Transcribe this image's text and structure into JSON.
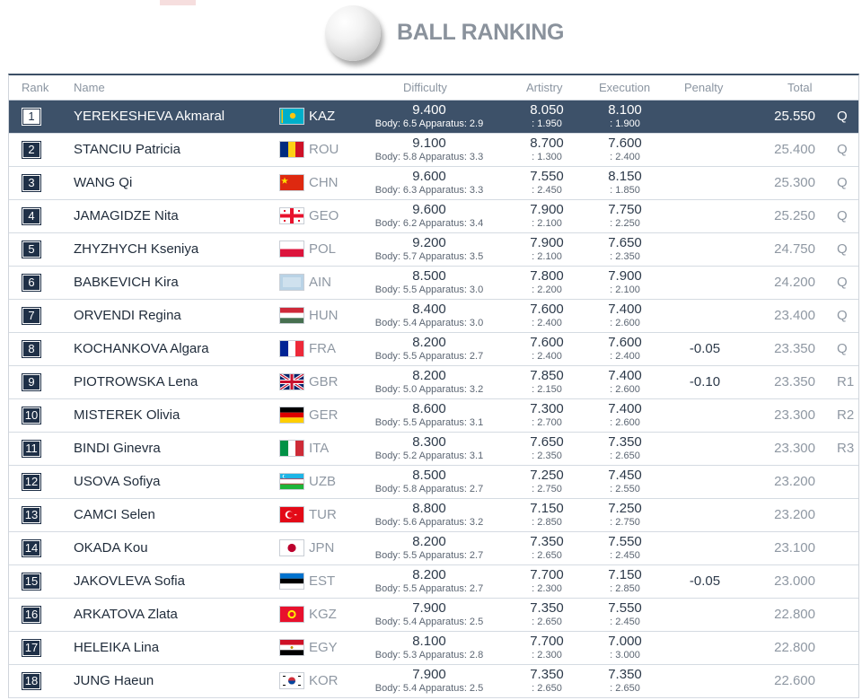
{
  "title": "BALL RANKING",
  "headers": {
    "rank": "Rank",
    "name": "Name",
    "difficulty": "Difficulty",
    "artistry": "Artistry",
    "execution": "Execution",
    "penalty": "Penalty",
    "total": "Total"
  },
  "colors": {
    "highlight_row": "#3d5169",
    "rank_box": "#1f3047",
    "title": "#8a929c"
  },
  "rows": [
    {
      "rank": "1",
      "name": "YEREKESHEVA Akmaral",
      "noc": "KAZ",
      "flag": "kaz-flag-icon",
      "difficulty": "9.400",
      "diff_detail": "Body: 6.5 Apparatus: 2.9",
      "artistry": "8.050",
      "art_detail": ": 1.950",
      "execution": "8.100",
      "exe_detail": ": 1.900",
      "penalty": "",
      "total": "25.550",
      "qual": "Q",
      "highlight": true
    },
    {
      "rank": "2",
      "name": "STANCIU Patricia",
      "noc": "ROU",
      "flag": "rou-flag-icon",
      "difficulty": "9.100",
      "diff_detail": "Body: 5.8 Apparatus: 3.3",
      "artistry": "8.700",
      "art_detail": ": 1.300",
      "execution": "7.600",
      "exe_detail": ": 2.400",
      "penalty": "",
      "total": "25.400",
      "qual": "Q"
    },
    {
      "rank": "3",
      "name": "WANG Qi",
      "noc": "CHN",
      "flag": "chn-flag-icon",
      "difficulty": "9.600",
      "diff_detail": "Body: 6.3 Apparatus: 3.3",
      "artistry": "7.550",
      "art_detail": ": 2.450",
      "execution": "8.150",
      "exe_detail": ": 1.850",
      "penalty": "",
      "total": "25.300",
      "qual": "Q"
    },
    {
      "rank": "4",
      "name": "JAMAGIDZE Nita",
      "noc": "GEO",
      "flag": "geo-flag-icon",
      "difficulty": "9.600",
      "diff_detail": "Body: 6.2 Apparatus: 3.4",
      "artistry": "7.900",
      "art_detail": ": 2.100",
      "execution": "7.750",
      "exe_detail": ": 2.250",
      "penalty": "",
      "total": "25.250",
      "qual": "Q"
    },
    {
      "rank": "5",
      "name": "ZHYZHYCH Kseniya",
      "noc": "POL",
      "flag": "pol-flag-icon",
      "difficulty": "9.200",
      "diff_detail": "Body: 5.7 Apparatus: 3.5",
      "artistry": "7.900",
      "art_detail": ": 2.100",
      "execution": "7.650",
      "exe_detail": ": 2.350",
      "penalty": "",
      "total": "24.750",
      "qual": "Q"
    },
    {
      "rank": "6",
      "name": "BABKEVICH Kira",
      "noc": "AIN",
      "flag": "ain-flag-icon",
      "difficulty": "8.500",
      "diff_detail": "Body: 5.5 Apparatus: 3.0",
      "artistry": "7.800",
      "art_detail": ": 2.200",
      "execution": "7.900",
      "exe_detail": ": 2.100",
      "penalty": "",
      "total": "24.200",
      "qual": "Q"
    },
    {
      "rank": "7",
      "name": "ORVENDI Regina",
      "noc": "HUN",
      "flag": "hun-flag-icon",
      "difficulty": "8.400",
      "diff_detail": "Body: 5.4 Apparatus: 3.0",
      "artistry": "7.600",
      "art_detail": ": 2.400",
      "execution": "7.400",
      "exe_detail": ": 2.600",
      "penalty": "",
      "total": "23.400",
      "qual": "Q"
    },
    {
      "rank": "8",
      "name": "KOCHANKOVA Algara",
      "noc": "FRA",
      "flag": "fra-flag-icon",
      "difficulty": "8.200",
      "diff_detail": "Body: 5.5 Apparatus: 2.7",
      "artistry": "7.600",
      "art_detail": ": 2.400",
      "execution": "7.600",
      "exe_detail": ": 2.400",
      "penalty": "-0.05",
      "total": "23.350",
      "qual": "Q"
    },
    {
      "rank": "9",
      "name": "PIOTROWSKA Lena",
      "noc": "GBR",
      "flag": "gbr-flag-icon",
      "difficulty": "8.200",
      "diff_detail": "Body: 5.0 Apparatus: 3.2",
      "artistry": "7.850",
      "art_detail": ": 2.150",
      "execution": "7.400",
      "exe_detail": ": 2.600",
      "penalty": "-0.10",
      "total": "23.350",
      "qual": "R1"
    },
    {
      "rank": "10",
      "name": "MISTEREK Olivia",
      "noc": "GER",
      "flag": "ger-flag-icon",
      "difficulty": "8.600",
      "diff_detail": "Body: 5.5 Apparatus: 3.1",
      "artistry": "7.300",
      "art_detail": ": 2.700",
      "execution": "7.400",
      "exe_detail": ": 2.600",
      "penalty": "",
      "total": "23.300",
      "qual": "R2"
    },
    {
      "rank": "11",
      "name": "BINDI Ginevra",
      "noc": "ITA",
      "flag": "ita-flag-icon",
      "difficulty": "8.300",
      "diff_detail": "Body: 5.2 Apparatus: 3.1",
      "artistry": "7.650",
      "art_detail": ": 2.350",
      "execution": "7.350",
      "exe_detail": ": 2.650",
      "penalty": "",
      "total": "23.300",
      "qual": "R3"
    },
    {
      "rank": "12",
      "name": "USOVA Sofiya",
      "noc": "UZB",
      "flag": "uzb-flag-icon",
      "difficulty": "8.500",
      "diff_detail": "Body: 5.8 Apparatus: 2.7",
      "artistry": "7.250",
      "art_detail": ": 2.750",
      "execution": "7.450",
      "exe_detail": ": 2.550",
      "penalty": "",
      "total": "23.200",
      "qual": ""
    },
    {
      "rank": "13",
      "name": "CAMCI Selen",
      "noc": "TUR",
      "flag": "tur-flag-icon",
      "difficulty": "8.800",
      "diff_detail": "Body: 5.6 Apparatus: 3.2",
      "artistry": "7.150",
      "art_detail": ": 2.850",
      "execution": "7.250",
      "exe_detail": ": 2.750",
      "penalty": "",
      "total": "23.200",
      "qual": ""
    },
    {
      "rank": "14",
      "name": "OKADA Kou",
      "noc": "JPN",
      "flag": "jpn-flag-icon",
      "difficulty": "8.200",
      "diff_detail": "Body: 5.5 Apparatus: 2.7",
      "artistry": "7.350",
      "art_detail": ": 2.650",
      "execution": "7.550",
      "exe_detail": ": 2.450",
      "penalty": "",
      "total": "23.100",
      "qual": ""
    },
    {
      "rank": "15",
      "name": "JAKOVLEVA Sofia",
      "noc": "EST",
      "flag": "est-flag-icon",
      "difficulty": "8.200",
      "diff_detail": "Body: 5.5 Apparatus: 2.7",
      "artistry": "7.700",
      "art_detail": ": 2.300",
      "execution": "7.150",
      "exe_detail": ": 2.850",
      "penalty": "-0.05",
      "total": "23.000",
      "qual": ""
    },
    {
      "rank": "16",
      "name": "ARKATOVA Zlata",
      "noc": "KGZ",
      "flag": "kgz-flag-icon",
      "difficulty": "7.900",
      "diff_detail": "Body: 5.4 Apparatus: 2.5",
      "artistry": "7.350",
      "art_detail": ": 2.650",
      "execution": "7.550",
      "exe_detail": ": 2.450",
      "penalty": "",
      "total": "22.800",
      "qual": ""
    },
    {
      "rank": "17",
      "name": "HELEIKA Lina",
      "noc": "EGY",
      "flag": "egy-flag-icon",
      "difficulty": "8.100",
      "diff_detail": "Body: 5.3 Apparatus: 2.8",
      "artistry": "7.700",
      "art_detail": ": 2.300",
      "execution": "7.000",
      "exe_detail": ": 3.000",
      "penalty": "",
      "total": "22.800",
      "qual": ""
    },
    {
      "rank": "18",
      "name": "JUNG Haeun",
      "noc": "KOR",
      "flag": "kor-flag-icon",
      "difficulty": "7.900",
      "diff_detail": "Body: 5.4 Apparatus: 2.5",
      "artistry": "7.350",
      "art_detail": ": 2.650",
      "execution": "7.350",
      "exe_detail": ": 2.650",
      "penalty": "",
      "total": "22.600",
      "qual": ""
    }
  ]
}
